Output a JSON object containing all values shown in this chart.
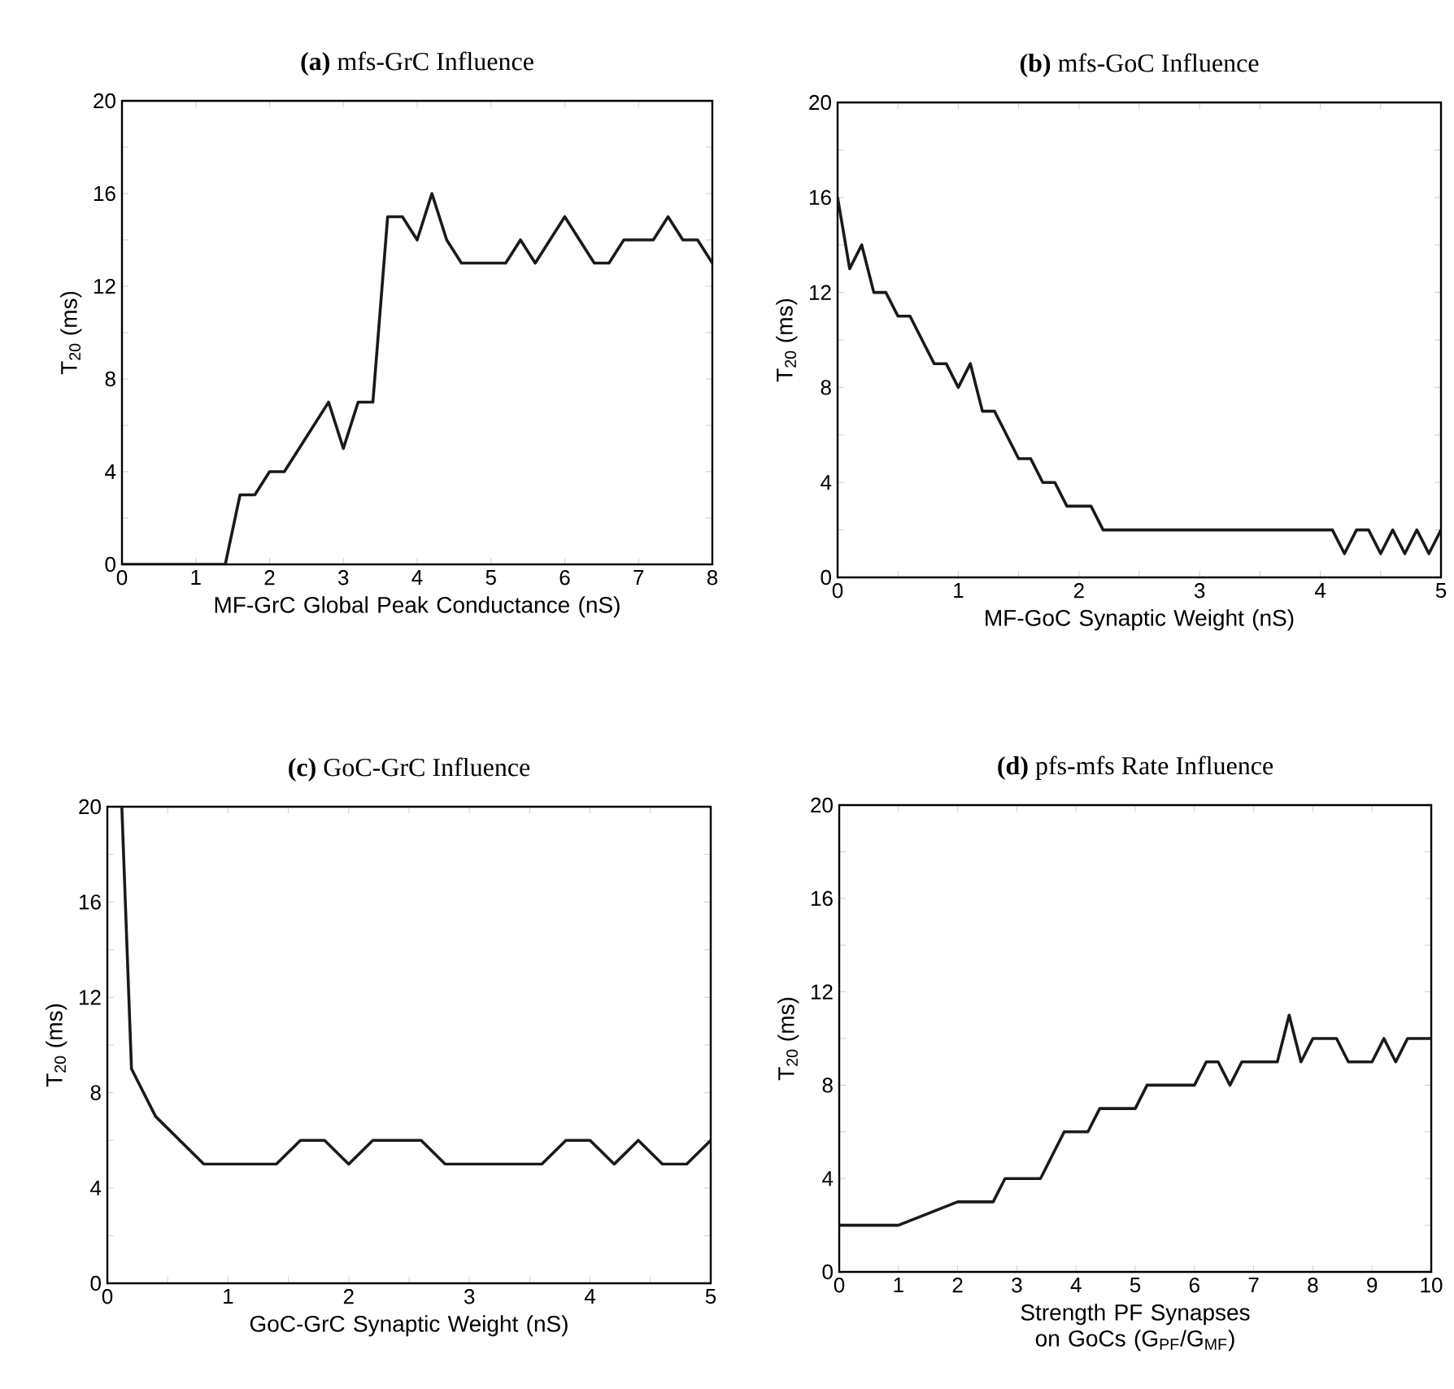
{
  "chart_data": [
    {
      "type": "line",
      "title": "**(a)** mfs-GrC Influence",
      "xlabel": "MF-GrC Global Peak Conductance (nS)",
      "ylabel": "T$_{20}$ (ms)",
      "color": "#1a1a1a",
      "line_style": "solid",
      "x": [
        0,
        1.4,
        1.6,
        1.8,
        2.0,
        2.2,
        2.4,
        2.6,
        2.8,
        3.0,
        3.2,
        3.4,
        3.6,
        3.8,
        4.0,
        4.2,
        4.4,
        4.6,
        4.8,
        5.0,
        5.2,
        5.4,
        5.6,
        5.8,
        6.0,
        6.2,
        6.4,
        6.6,
        6.8,
        7.0,
        7.2,
        7.4,
        7.6,
        7.8,
        8.0
      ],
      "values": [
        0,
        0,
        3,
        3,
        4,
        4,
        5,
        6,
        7,
        5,
        7,
        7,
        15,
        15,
        14,
        16,
        14,
        13,
        13,
        13,
        13,
        14,
        13,
        14,
        15,
        14,
        13,
        13,
        14,
        14,
        14,
        15,
        14,
        14,
        13
      ],
      "xlim": [
        0,
        8
      ],
      "xticks": [
        0,
        1,
        2,
        3,
        4,
        5,
        6,
        7,
        8
      ],
      "ylim": [
        0,
        20
      ],
      "yticks": [
        0,
        {
          "value": 2,
          "label": null
        },
        4,
        {
          "value": 6,
          "label": null
        },
        8,
        {
          "value": 10,
          "label": null
        },
        12,
        {
          "value": 14,
          "label": null
        },
        16,
        {
          "value": 18,
          "label": null
        },
        20
      ]
    },
    {
      "type": "line",
      "title": "**(b)** mfs-GoC Influence",
      "xlabel": "MF-GoC Synaptic Weight (nS)",
      "ylabel": "T$_{20}$ (ms)",
      "color": "#1a1a1a",
      "line_style": "solid",
      "x": [
        0,
        0.1,
        0.2,
        0.3,
        0.4,
        0.5,
        0.6,
        0.7,
        0.8,
        0.9,
        1.0,
        1.1,
        1.2,
        1.3,
        1.4,
        1.5,
        1.6,
        1.7,
        1.8,
        1.9,
        2.0,
        2.1,
        2.2,
        4.1,
        4.2,
        4.3,
        4.4,
        4.5,
        4.6,
        4.7,
        4.8,
        4.9,
        5.0
      ],
      "values": [
        16,
        13,
        14,
        12,
        12,
        11,
        11,
        10,
        9,
        9,
        8,
        9,
        7,
        7,
        6,
        5,
        5,
        4,
        4,
        3,
        3,
        3,
        2,
        2,
        1,
        2,
        2,
        1,
        2,
        1,
        2,
        1,
        2
      ],
      "xlim": [
        0,
        5
      ],
      "xticks": [
        0,
        {
          "value": 0.5,
          "label": null
        },
        1,
        {
          "value": 1.5,
          "label": null
        },
        2,
        {
          "value": 2.5,
          "label": null
        },
        3,
        {
          "value": 3.5,
          "label": null
        },
        4,
        {
          "value": 4.5,
          "label": null
        },
        5
      ],
      "ylim": [
        0,
        20
      ],
      "yticks": [
        0,
        {
          "value": 2,
          "label": null
        },
        4,
        {
          "value": 6,
          "label": null
        },
        8,
        {
          "value": 10,
          "label": null
        },
        12,
        {
          "value": 14,
          "label": null
        },
        16,
        {
          "value": 18,
          "label": null
        },
        20
      ]
    },
    {
      "type": "line",
      "title": "**(c)** GoC-GrC Influence",
      "xlabel": "GoC-GrC Synaptic Weight (nS)",
      "ylabel": "T$_{20}$ (ms)",
      "color": "#1a1a1a",
      "line_style": "solid",
      "x": [
        0.12,
        0.2,
        0.4,
        0.8,
        1.4,
        1.6,
        1.8,
        2.0,
        2.2,
        2.6,
        2.8,
        3.6,
        3.8,
        4.0,
        4.2,
        4.4,
        4.6,
        4.8,
        5.0
      ],
      "values": [
        20,
        9,
        7,
        5,
        5,
        6,
        6,
        5,
        6,
        6,
        5,
        5,
        6,
        6,
        5,
        6,
        5,
        5,
        6
      ],
      "xlim": [
        0,
        5
      ],
      "xticks": [
        0,
        {
          "value": 0.5,
          "label": null
        },
        1,
        {
          "value": 1.5,
          "label": null
        },
        2,
        {
          "value": 2.5,
          "label": null
        },
        3,
        {
          "value": 3.5,
          "label": null
        },
        4,
        {
          "value": 4.5,
          "label": null
        },
        5
      ],
      "ylim": [
        0,
        20
      ],
      "yticks": [
        0,
        {
          "value": 2,
          "label": null
        },
        4,
        {
          "value": 6,
          "label": null
        },
        8,
        {
          "value": 10,
          "label": null
        },
        12,
        {
          "value": 14,
          "label": null
        },
        16,
        {
          "value": 18,
          "label": null
        },
        20
      ]
    },
    {
      "type": "line",
      "title": "**(d)** pfs-mfs Rate Influence",
      "xlabel": "Strength PF Synapses on GoCs (G$_{PF}$/G$_{MF}$)",
      "ylabel": "T$_{20}$ (ms)",
      "color": "#1a1a1a",
      "line_style": "solid",
      "x": [
        0,
        1,
        2,
        2.6,
        2.8,
        3.4,
        3.8,
        4.2,
        4.4,
        5.0,
        5.2,
        6.0,
        6.2,
        6.4,
        6.6,
        6.8,
        7.4,
        7.6,
        7.8,
        8.0,
        8.4,
        8.6,
        9.0,
        9.2,
        9.4,
        9.6,
        10
      ],
      "values": [
        2,
        2,
        3,
        3,
        4,
        4,
        6,
        6,
        7,
        7,
        8,
        8,
        9,
        9,
        8,
        9,
        9,
        11,
        9,
        10,
        10,
        9,
        9,
        10,
        9,
        10,
        10
      ],
      "xlim": [
        0,
        10
      ],
      "xticks": [
        0,
        1,
        2,
        3,
        4,
        5,
        6,
        7,
        8,
        9,
        10
      ],
      "ylim": [
        0,
        20
      ],
      "yticks": [
        0,
        {
          "value": 2,
          "label": null
        },
        4,
        {
          "value": 6,
          "label": null
        },
        8,
        {
          "value": 10,
          "label": null
        },
        12,
        {
          "value": 14,
          "label": null
        },
        16,
        {
          "value": 18,
          "label": null
        },
        20
      ]
    }
  ]
}
